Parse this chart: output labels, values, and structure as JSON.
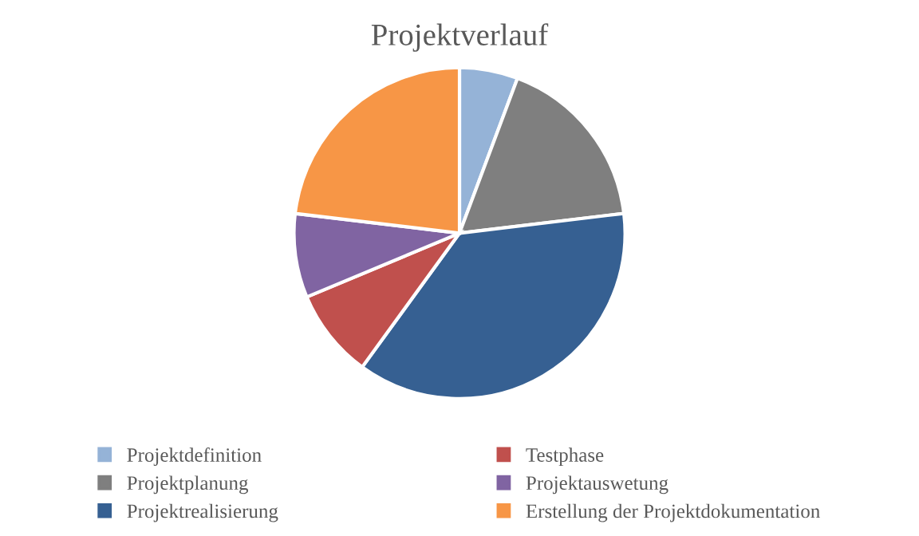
{
  "chart_data": {
    "type": "pie",
    "title": "Projektverlauf",
    "categories": [
      "Projektdefinition",
      "Projektplanung",
      "Projektrealisierung",
      "Testphase",
      "Projektauswetung",
      "Erstellung der Projektdokumentation"
    ],
    "values": [
      5.7,
      17.4,
      36.9,
      8.7,
      8.2,
      23.1
    ],
    "colors": [
      "#95b3d7",
      "#7f7f7f",
      "#366092",
      "#c0504d",
      "#8064a2",
      "#f79646"
    ],
    "legend": "bottom"
  }
}
